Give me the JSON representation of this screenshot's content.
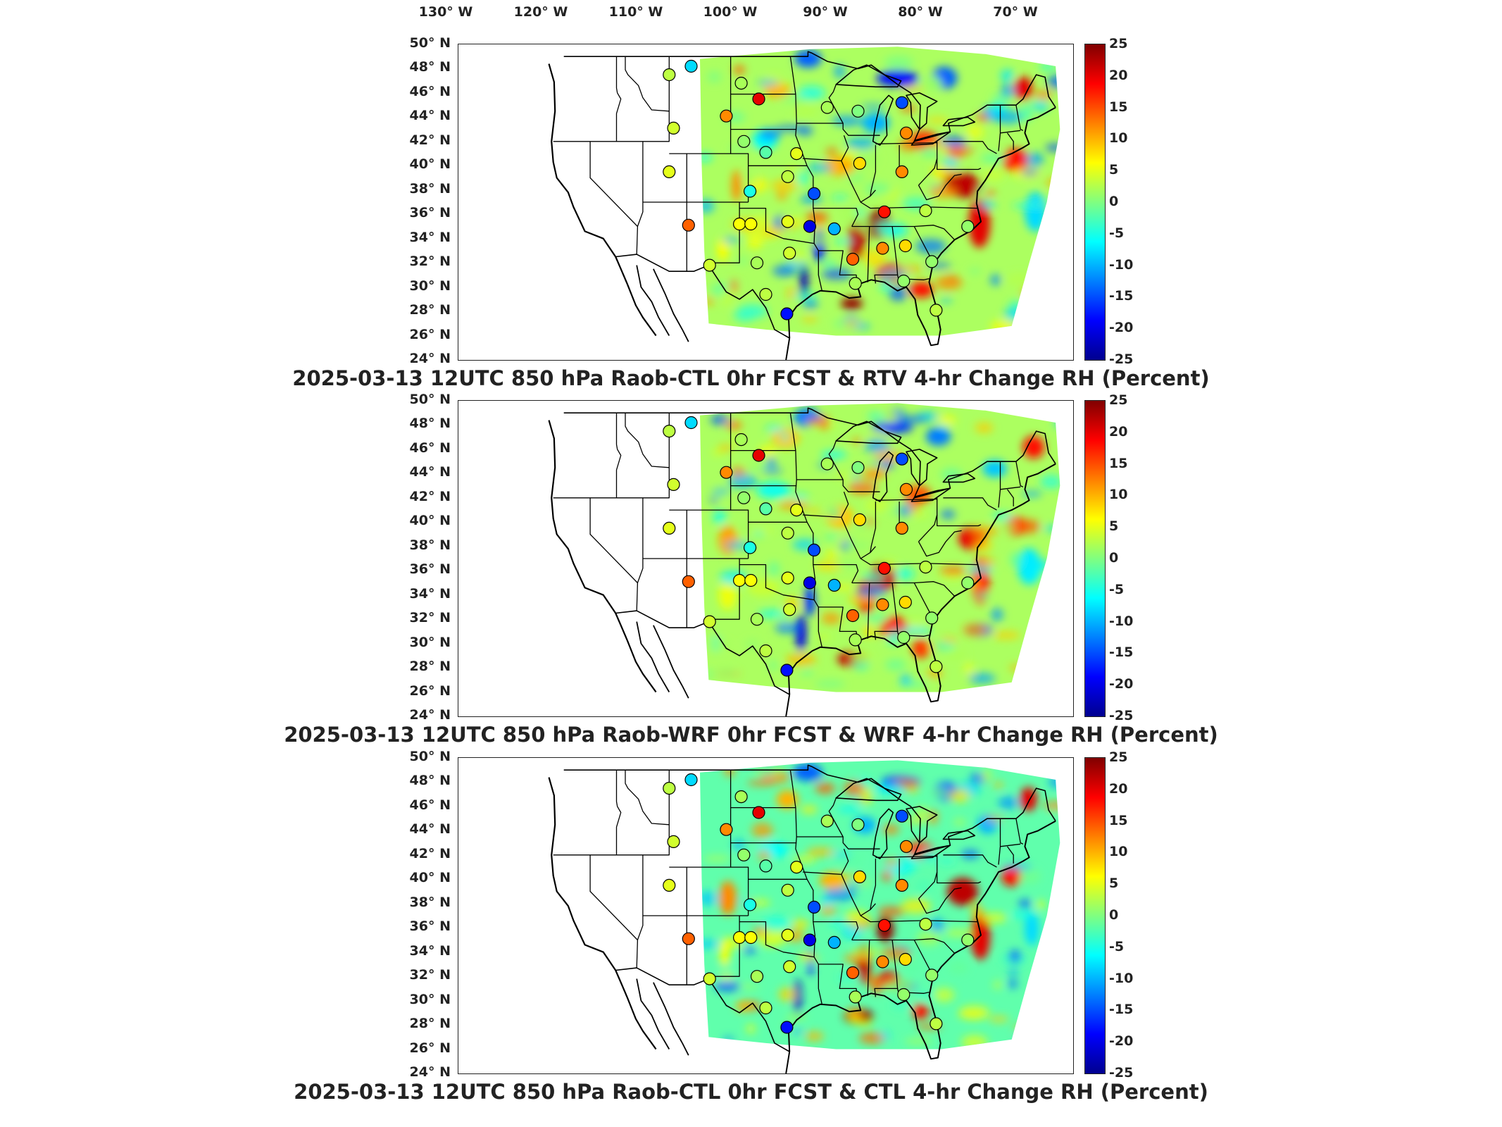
{
  "lon_labels": [
    "130° W",
    "120° W",
    "110° W",
    "100° W",
    "90° W",
    "80° W",
    "70° W"
  ],
  "lat_labels": [
    "50° N",
    "48° N",
    "46° N",
    "44° N",
    "42° N",
    "40° N",
    "38° N",
    "36° N",
    "34° N",
    "32° N",
    "30° N",
    "28° N",
    "26° N",
    "24° N"
  ],
  "colorbar": {
    "ticks": [
      "25",
      "20",
      "15",
      "10",
      "5",
      "0",
      "-5",
      "-10",
      "-15",
      "-20",
      "-25"
    ],
    "range": [
      -25,
      25
    ],
    "colormap": "jet",
    "colors": [
      "#00008f",
      "#0000ff",
      "#0080ff",
      "#00ffff",
      "#80ff80",
      "#ffff00",
      "#ff8000",
      "#ff0000",
      "#800000"
    ]
  },
  "panels": [
    {
      "title": "2025-03-13 12UTC 850 hPa Raob-CTL 0hr FCST & RTV 4-hr Change RH (Percent)"
    },
    {
      "title": "2025-03-13 12UTC 850 hPa Raob-WRF 0hr FCST & WRF 4-hr Change RH (Percent)"
    },
    {
      "title": "2025-03-13 12UTC 850 hPa Raob-CTL 0hr FCST & CTL 4-hr Change RH (Percent)"
    }
  ],
  "map_data": {
    "parameter": "850 hPa RH",
    "units": "Percent",
    "raob_sites": [
      {
        "lon": -111.0,
        "lat": 47.5,
        "value": 3
      },
      {
        "lon": -108.5,
        "lat": 48.2,
        "value": -8
      },
      {
        "lon": -102.8,
        "lat": 46.8,
        "value": 2
      },
      {
        "lon": -100.8,
        "lat": 45.5,
        "value": 20
      },
      {
        "lon": -104.5,
        "lat": 44.1,
        "value": 12
      },
      {
        "lon": -110.5,
        "lat": 43.1,
        "value": 4
      },
      {
        "lon": -102.5,
        "lat": 42.0,
        "value": 1
      },
      {
        "lon": -100.0,
        "lat": 41.1,
        "value": -2
      },
      {
        "lon": -96.5,
        "lat": 41.0,
        "value": 5
      },
      {
        "lon": -111.0,
        "lat": 39.5,
        "value": 5
      },
      {
        "lon": -101.8,
        "lat": 37.9,
        "value": -5
      },
      {
        "lon": -97.5,
        "lat": 39.1,
        "value": 3
      },
      {
        "lon": -93.0,
        "lat": 44.8,
        "value": 2
      },
      {
        "lon": -89.5,
        "lat": 44.5,
        "value": 0
      },
      {
        "lon": -84.5,
        "lat": 45.2,
        "value": -15
      },
      {
        "lon": -84.0,
        "lat": 42.7,
        "value": 12
      },
      {
        "lon": -89.3,
        "lat": 40.2,
        "value": 8
      },
      {
        "lon": -84.5,
        "lat": 39.5,
        "value": 12
      },
      {
        "lon": -94.5,
        "lat": 37.7,
        "value": -15
      },
      {
        "lon": -103.0,
        "lat": 35.2,
        "value": 6
      },
      {
        "lon": -101.7,
        "lat": 35.2,
        "value": 6
      },
      {
        "lon": -108.8,
        "lat": 35.1,
        "value": 14
      },
      {
        "lon": -97.5,
        "lat": 35.4,
        "value": 5
      },
      {
        "lon": -92.2,
        "lat": 34.8,
        "value": -10
      },
      {
        "lon": -86.5,
        "lat": 36.2,
        "value": 18
      },
      {
        "lon": -81.8,
        "lat": 36.3,
        "value": 3
      },
      {
        "lon": -77.0,
        "lat": 35.0,
        "value": 1
      },
      {
        "lon": -97.3,
        "lat": 32.8,
        "value": 4
      },
      {
        "lon": -101.0,
        "lat": 32.0,
        "value": 2
      },
      {
        "lon": -106.4,
        "lat": 31.8,
        "value": 4
      },
      {
        "lon": -90.1,
        "lat": 32.3,
        "value": 14
      },
      {
        "lon": -86.7,
        "lat": 33.2,
        "value": 12
      },
      {
        "lon": -84.1,
        "lat": 33.4,
        "value": 8
      },
      {
        "lon": -81.1,
        "lat": 32.1,
        "value": 1
      },
      {
        "lon": -100.0,
        "lat": 29.4,
        "value": 3
      },
      {
        "lon": -97.6,
        "lat": 27.8,
        "value": -18
      },
      {
        "lon": -89.8,
        "lat": 30.3,
        "value": 2
      },
      {
        "lon": -84.3,
        "lat": 30.5,
        "value": 1
      },
      {
        "lon": -80.6,
        "lat": 28.1,
        "value": 3
      },
      {
        "lon": -95.0,
        "lat": 35.0,
        "value": -20
      }
    ]
  }
}
